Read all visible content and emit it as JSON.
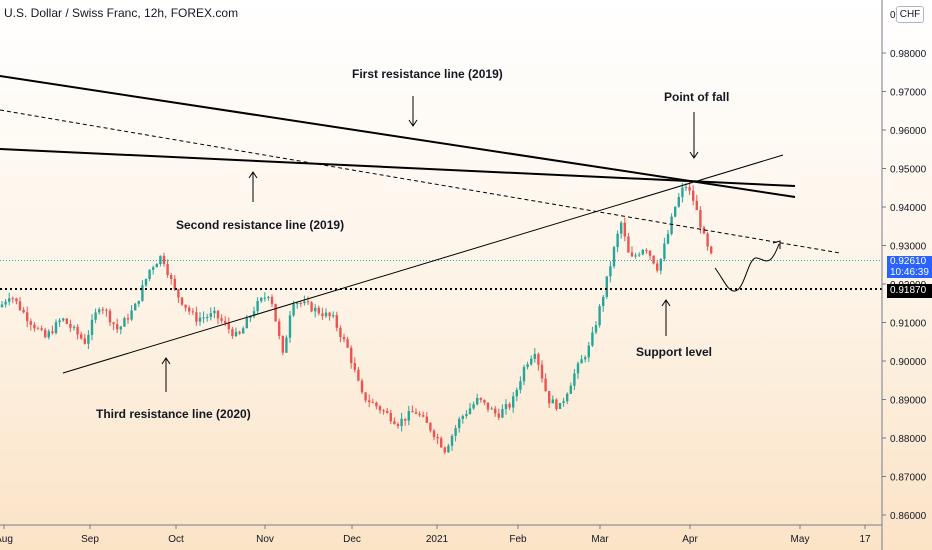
{
  "header": {
    "title": "U.S. Dollar / Swiss Franc, 12h, FOREX.com",
    "currency": "CHF"
  },
  "chart_data": {
    "type": "candlestick",
    "y_axis": {
      "ticks": [
        "0.98000",
        "0.97000",
        "0.96000",
        "0.95000",
        "0.94000",
        "0.93000",
        "0.92000",
        "0.91000",
        "0.90000",
        "0.89000",
        "0.88000",
        "0.87000",
        "0.86000"
      ],
      "range": [
        0.8595,
        0.9995
      ]
    },
    "x_axis": {
      "ticks": [
        "Aug",
        "Sep",
        "Oct",
        "Nov",
        "Dec",
        "2021",
        "Feb",
        "Mar",
        "Apr",
        "May",
        "17"
      ]
    },
    "price": {
      "current": "0.92610",
      "countdown": "10:46:39",
      "support": "0.91870",
      "color_up": "#26a69a",
      "color_down": "#ef5350"
    },
    "annotations": {
      "first_resistance": "First resistance line (2019)",
      "second_resistance": "Second resistance line (2019)",
      "third_resistance": "Third resistance line (2020)",
      "point_of_fall": "Point of fall",
      "support_level": "Support level"
    }
  }
}
